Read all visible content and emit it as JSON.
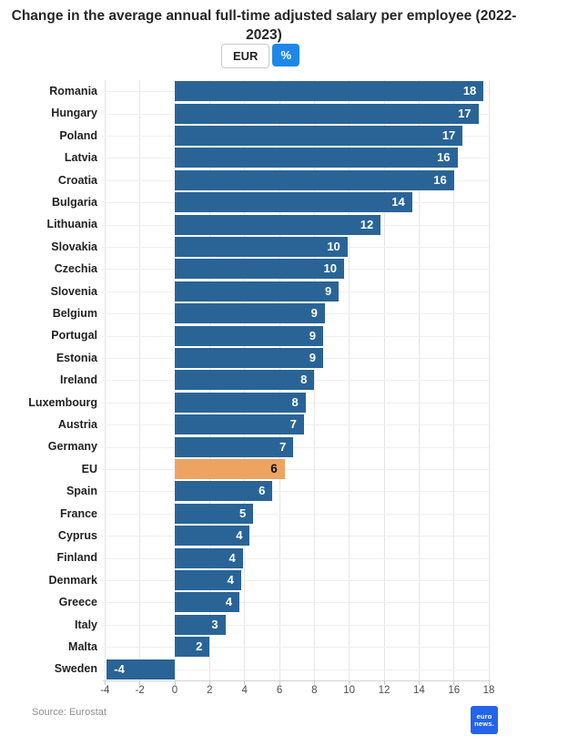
{
  "header": {
    "title": "Change in the average annual full-time adjusted salary per employee (2022-2023)"
  },
  "toggle": {
    "eur_label": "EUR",
    "percent_label": "%",
    "selected": "%"
  },
  "footer": {
    "source": "Source: Eurostat",
    "logo_line1": "euro",
    "logo_line2": "news."
  },
  "chart_data": {
    "type": "bar",
    "orientation": "horizontal",
    "title": "Change in the average annual full-time adjusted salary per employee (2022-2023)",
    "unit": "%",
    "categories": [
      "Romania",
      "Hungary",
      "Poland",
      "Latvia",
      "Croatia",
      "Bulgaria",
      "Lithuania",
      "Slovakia",
      "Czechia",
      "Slovenia",
      "Belgium",
      "Portugal",
      "Estonia",
      "Ireland",
      "Luxembourg",
      "Austria",
      "Germany",
      "EU",
      "Spain",
      "France",
      "Cyprus",
      "Finland",
      "Denmark",
      "Greece",
      "Italy",
      "Malta",
      "Sweden"
    ],
    "values": [
      18,
      17,
      17,
      16,
      16,
      14,
      12,
      10,
      10,
      9,
      9,
      9,
      9,
      8,
      8,
      7,
      7,
      6,
      6,
      5,
      4,
      4,
      4,
      4,
      3,
      2,
      -4
    ],
    "value_labels": [
      "18",
      "17",
      "17",
      "16",
      "16",
      "14",
      "12",
      "10",
      "10",
      "9",
      "9",
      "9",
      "9",
      "8",
      "8",
      "7",
      "7",
      "6",
      "6",
      "5",
      "4",
      "4",
      "4",
      "4",
      "3",
      "2",
      "-4"
    ],
    "bar_values": [
      17.7,
      17.4,
      16.5,
      16.2,
      16.0,
      13.6,
      11.8,
      9.9,
      9.7,
      9.4,
      8.6,
      8.5,
      8.5,
      8.0,
      7.5,
      7.4,
      6.8,
      6.3,
      5.6,
      4.5,
      4.3,
      3.9,
      3.8,
      3.7,
      2.9,
      2.0,
      -3.9
    ],
    "highlight_category": "EU",
    "xticks": [
      -4,
      -2,
      0,
      2,
      4,
      6,
      8,
      10,
      12,
      14,
      16,
      18
    ],
    "xlim": [
      -4.1,
      18.2
    ],
    "grid": "vertical-light",
    "legend": "none",
    "colors": {
      "bar": "#2a6496",
      "highlight_bar": "#eda461",
      "value_label": "#ffffff",
      "highlight_value_label": "#111111",
      "toggle_active": "#1f87e8",
      "logo": "#2563eb"
    }
  }
}
